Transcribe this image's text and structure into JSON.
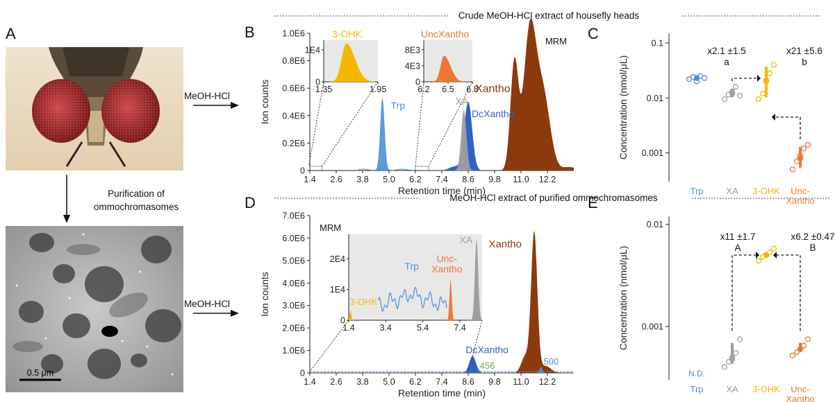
{
  "panel_letters": {
    "a": "A",
    "b": "B",
    "c": "C",
    "d": "D",
    "e": "E"
  },
  "left": {
    "purification_line1": "Purification of",
    "purification_line2": "ommochromasomes",
    "scale_bar": "0.5 μm",
    "arrow_top": "MeOH-HCl",
    "arrow_bottom": "MeOH-HCl"
  },
  "headers": {
    "top": "Crude MeOH-HCl extract of housefly heads",
    "bottom": "MeOH-HCl extract of purified ommochromasomes"
  },
  "colors": {
    "trp": "#4a90d9",
    "xa": "#9e9e9e",
    "ohk": "#f5b800",
    "unc": "#ee7733",
    "xantho": "#8b3a0e",
    "dcxantho": "#2f62c4",
    "green": "#6aa84f",
    "inset_bg": "#e8e8e8"
  },
  "chart_data": [
    {
      "id": "B",
      "type": "area",
      "xlabel": "Retention time (min)",
      "ylabel": "Ion counts",
      "xlim": [
        1.4,
        13.4
      ],
      "ylim": [
        0,
        1000000
      ],
      "xticks": [
        "1.4",
        "2.6",
        "3.8",
        "5.0",
        "6.2",
        "7.4",
        "8.6",
        "9.8",
        "11.0",
        "12.2"
      ],
      "yticks": [
        "0",
        "0.2E6",
        "0.4E6",
        "0.6E6",
        "0.8E6",
        "1.0E6"
      ],
      "corner_label": "MRM",
      "peaks": [
        {
          "name": "Trp",
          "rt": 4.7,
          "height": 530000
        },
        {
          "name": "XA",
          "rt": 8.4,
          "height": 440000
        },
        {
          "name": "DcXantho",
          "rt": 8.6,
          "height": 500000
        },
        {
          "name": "Xantho",
          "rt": 11.4,
          "height": 1000000
        }
      ],
      "insets": [
        {
          "name": "3-OHK",
          "xlim": [
            1.35,
            1.95
          ],
          "xticks": [
            "1.35",
            "1.95"
          ],
          "yticks": [
            "0",
            "1E4"
          ],
          "rt": 1.6,
          "height": 12000
        },
        {
          "name": "UncXantho",
          "xlim": [
            6.2,
            6.8
          ],
          "xticks": [
            "6.2",
            "6.5",
            "6.8"
          ],
          "yticks": [
            "0",
            "4E3",
            "8E3"
          ],
          "rt": 6.45,
          "height": 6500
        }
      ]
    },
    {
      "id": "C",
      "type": "scatter",
      "ylabel": "Concentration (nmol/μL)",
      "yscale": "log",
      "ylim": [
        0.0003,
        0.15
      ],
      "yticks": [
        "0.001",
        "0.01",
        "0.1"
      ],
      "categories": [
        "Trp",
        "XA",
        "3-OHK",
        "Unc-\nXantho"
      ],
      "category_lines": [
        [
          "Trp"
        ],
        [
          "XA"
        ],
        [
          "3-OHK"
        ],
        [
          "Unc-",
          "Xantho"
        ]
      ],
      "means": [
        0.023,
        0.012,
        0.02,
        0.0008
      ],
      "points": [
        [
          0.022,
          0.024,
          0.02,
          0.025,
          0.023
        ],
        [
          0.0095,
          0.0115,
          0.013,
          0.016,
          0.011
        ],
        [
          0.0095,
          0.012,
          0.021,
          0.028,
          0.04
        ],
        [
          0.0005,
          0.0007,
          0.0009,
          0.0012,
          0.0014
        ]
      ],
      "annotations": [
        {
          "fold": "x2.1 ±1.5",
          "letter": "a"
        },
        {
          "fold": "x21 ±5.6",
          "letter": "b"
        }
      ]
    },
    {
      "id": "D",
      "type": "area",
      "xlabel": "Retention time (min)",
      "ylabel": "Ion counts",
      "xlim": [
        1.4,
        13.4
      ],
      "ylim": [
        0,
        7000000
      ],
      "xticks": [
        "1.4",
        "2.6",
        "3.8",
        "5.0",
        "6.2",
        "7.4",
        "8.6",
        "9.8",
        "11.0",
        "12.2"
      ],
      "yticks": [
        "0",
        "1.0E6",
        "2.0E6",
        "3.0E6",
        "4.0E6",
        "5.0E6",
        "6.0E6",
        "7.0E6"
      ],
      "corner_label": "MRM",
      "peaks": [
        {
          "name": "DcXantho",
          "rt": 8.8,
          "height": 750000
        },
        {
          "name": "Xantho",
          "rt": 11.6,
          "height": 6200000
        },
        {
          "name": "500",
          "rt": 11.9,
          "height": 250000
        },
        {
          "name": "456",
          "rt": 9.0,
          "height": 60000
        }
      ],
      "inset": {
        "xlim": [
          1.4,
          8.6
        ],
        "xticks": [
          "1.4",
          "3.4",
          "5.4",
          "7.4"
        ],
        "yticks": [
          "0",
          "1E4",
          "2E4"
        ],
        "peaks": [
          {
            "name": "3-OHK",
            "rt": 1.5,
            "height": 3000
          },
          {
            "name": "Trp",
            "rt": 4.8,
            "height": 11000
          },
          {
            "name": "Unc-\nXantho",
            "rt": 6.9,
            "height": 13000
          },
          {
            "name": "XA",
            "rt": 8.3,
            "height": 26000
          }
        ],
        "labels": {
          "ohk": "3-OHK",
          "trp": "Trp",
          "unc1": "Unc-",
          "unc2": "Xantho",
          "xa": "XA"
        }
      }
    },
    {
      "id": "E",
      "type": "scatter",
      "ylabel": "Concentration (nmol/μL)",
      "yscale": "log",
      "ylim": [
        0.0003,
        0.012
      ],
      "yticks": [
        "0.001",
        "0.01"
      ],
      "categories": [
        "Trp",
        "XA",
        "3-OHK",
        "Unc-\nXantho"
      ],
      "category_lines": [
        [
          "Trp"
        ],
        [
          "XA"
        ],
        [
          "3-OHK"
        ],
        [
          "Unc-",
          "Xantho"
        ]
      ],
      "means": [
        null,
        0.00048,
        0.005,
        0.0006
      ],
      "points": [
        [],
        [
          0.0004,
          0.00045,
          0.0005,
          0.00055,
          0.00075
        ],
        [
          0.0044,
          0.0048,
          0.005,
          0.0053,
          0.0058
        ],
        [
          0.00052,
          0.00056,
          0.0006,
          0.00065,
          0.00075
        ]
      ],
      "nd_label": "N.D.",
      "annotations": [
        {
          "fold": "x11 ±1.7",
          "letter": "A"
        },
        {
          "fold": "x6.2 ±0.47",
          "letter": "B"
        }
      ]
    }
  ]
}
